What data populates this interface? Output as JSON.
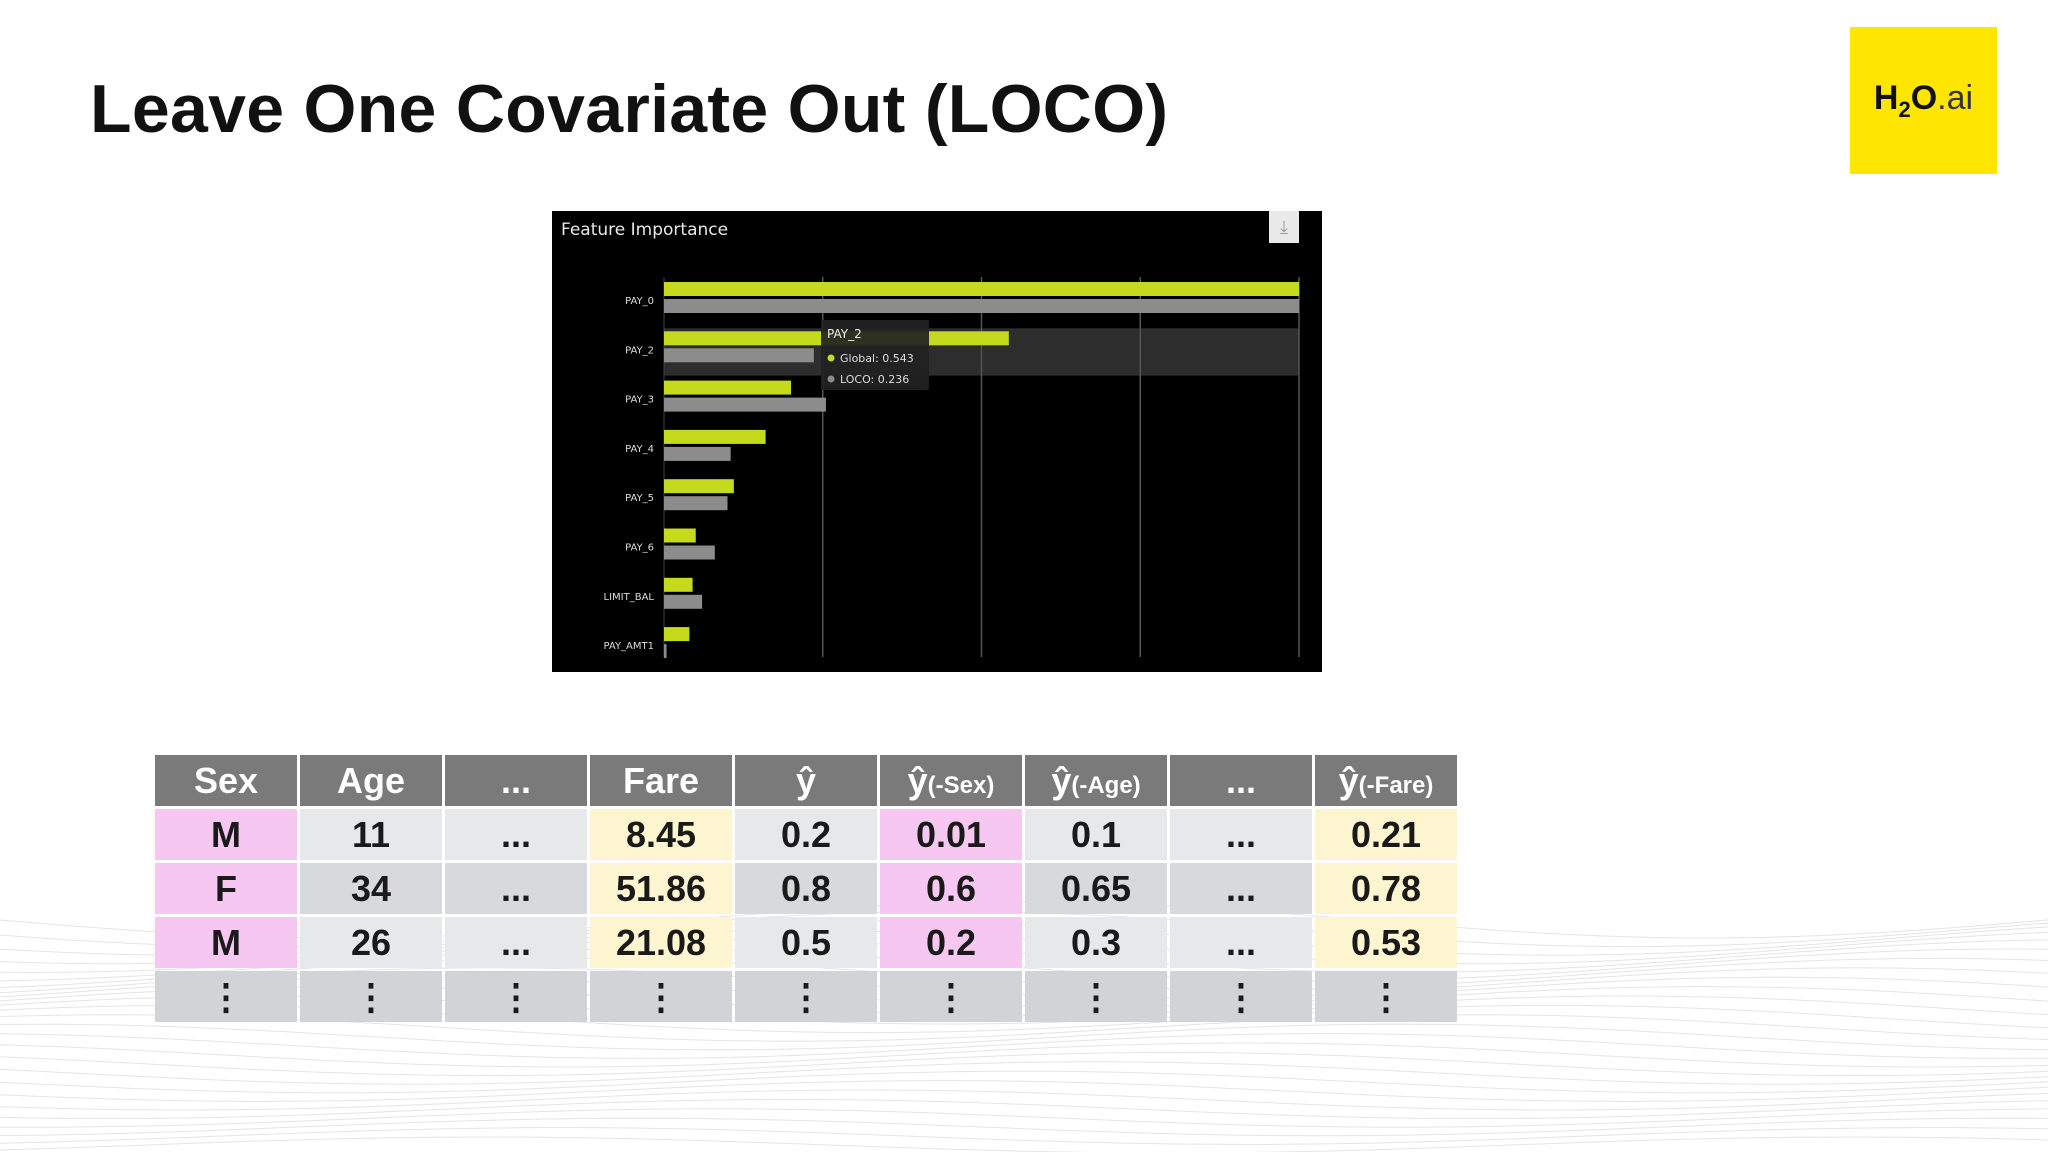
{
  "slide": {
    "title": "Leave One Covariate Out (LOCO)",
    "logo": {
      "h": "H",
      "sub": "2",
      "o": "O",
      "ai": ".ai"
    }
  },
  "chart": {
    "title": "Feature Importance",
    "download_icon": "download-icon",
    "tooltip": {
      "feature": "PAY_2",
      "global_label": "Global: 0.543",
      "loco_label": "LOCO: 0.236"
    }
  },
  "chart_data": {
    "type": "bar",
    "orientation": "horizontal",
    "title": "Feature Importance",
    "categories": [
      "PAY_0",
      "PAY_2",
      "PAY_3",
      "PAY_4",
      "PAY_5",
      "PAY_6",
      "LIMIT_BAL",
      "PAY_AMT1"
    ],
    "series": [
      {
        "name": "Global",
        "color": "#c5d91d",
        "values": [
          1.0,
          0.543,
          0.2,
          0.16,
          0.11,
          0.05,
          0.045,
          0.04
        ]
      },
      {
        "name": "LOCO",
        "color": "#8c8c8c",
        "values": [
          1.0,
          0.236,
          0.255,
          0.105,
          0.1,
          0.08,
          0.06,
          0.004
        ]
      }
    ],
    "xlim": [
      0,
      1.0
    ],
    "grid": true,
    "legend": "none",
    "highlighted_category": "PAY_2"
  },
  "table": {
    "headers": [
      {
        "main": "Sex"
      },
      {
        "main": "Age"
      },
      {
        "main": "..."
      },
      {
        "main": "Fare"
      },
      {
        "main": "ŷ"
      },
      {
        "main": "ŷ",
        "sub": "(-Sex)"
      },
      {
        "main": "ŷ",
        "sub": "(-Age)"
      },
      {
        "main": "..."
      },
      {
        "main": "ŷ",
        "sub": "(-Fare)"
      }
    ],
    "rows": [
      [
        "M",
        "11",
        "...",
        "8.45",
        "0.2",
        "0.01",
        "0.1",
        "...",
        "0.21"
      ],
      [
        "F",
        "34",
        "...",
        "51.86",
        "0.8",
        "0.6",
        "0.65",
        "...",
        "0.78"
      ],
      [
        "M",
        "26",
        "...",
        "21.08",
        "0.5",
        "0.2",
        "0.3",
        "...",
        "0.53"
      ],
      [
        "⋮",
        "⋮",
        "⋮",
        "⋮",
        "⋮",
        "⋮",
        "⋮",
        "⋮",
        "⋮"
      ]
    ],
    "colors": {
      "header": "#7a7a7a",
      "pink": "#f6c8f1",
      "yellow": "#fdf5cf"
    }
  }
}
